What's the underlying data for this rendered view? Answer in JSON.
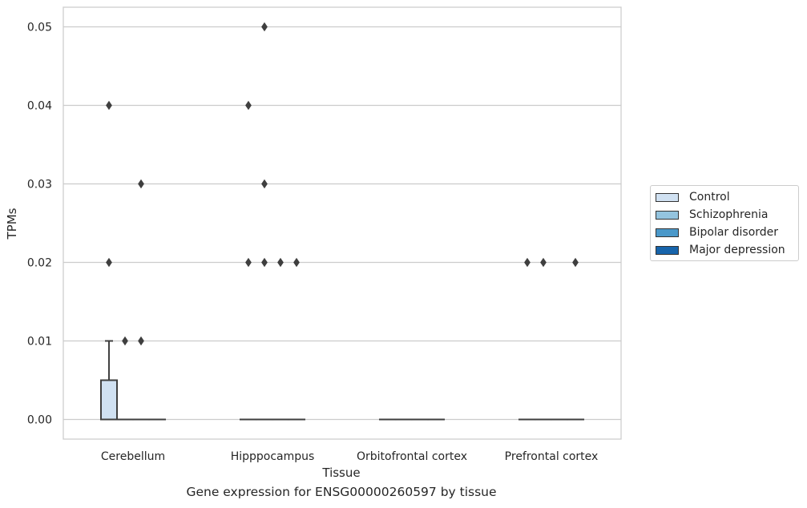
{
  "chart_data": {
    "type": "box",
    "xlabel": "Tissue",
    "ylabel": "TPMs",
    "caption": "Gene expression for ENSG00000260597 by tissue",
    "ylim": [
      -0.0025,
      0.0525
    ],
    "yticks": [
      "0.00",
      "0.01",
      "0.02",
      "0.03",
      "0.04",
      "0.05"
    ],
    "ytick_values": [
      0,
      0.01,
      0.02,
      0.03,
      0.04,
      0.05
    ],
    "grid": true,
    "legend_placement": "right",
    "categories": [
      "Cerebellum",
      "Hipppocampus",
      "Orbitofrontal cortex",
      "Prefrontal cortex"
    ],
    "series": [
      {
        "name": "Control",
        "color": "#d0e1f2",
        "boxes": [
          {
            "q1": 0,
            "median": 0,
            "q3": 0.005,
            "whisker_low": 0,
            "whisker_high": 0.01,
            "outliers": [
              0.02,
              0.04
            ]
          },
          {
            "q1": 0,
            "median": 0,
            "q3": 0,
            "whisker_low": 0,
            "whisker_high": 0,
            "outliers": [
              0.02,
              0.04
            ]
          },
          {
            "q1": 0,
            "median": 0,
            "q3": 0,
            "whisker_low": 0,
            "whisker_high": 0,
            "outliers": []
          },
          {
            "q1": 0,
            "median": 0,
            "q3": 0,
            "whisker_low": 0,
            "whisker_high": 0,
            "outliers": [
              0.02
            ]
          }
        ]
      },
      {
        "name": "Schizophrenia",
        "color": "#94c4df",
        "boxes": [
          {
            "q1": 0,
            "median": 0,
            "q3": 0,
            "whisker_low": 0,
            "whisker_high": 0,
            "outliers": [
              0.01
            ]
          },
          {
            "q1": 0,
            "median": 0,
            "q3": 0,
            "whisker_low": 0,
            "whisker_high": 0,
            "outliers": [
              0.02,
              0.03,
              0.05
            ]
          },
          {
            "q1": 0,
            "median": 0,
            "q3": 0,
            "whisker_low": 0,
            "whisker_high": 0,
            "outliers": []
          },
          {
            "q1": 0,
            "median": 0,
            "q3": 0,
            "whisker_low": 0,
            "whisker_high": 0,
            "outliers": [
              0.02
            ]
          }
        ]
      },
      {
        "name": "Bipolar disorder",
        "color": "#4a98c9",
        "boxes": [
          {
            "q1": 0,
            "median": 0,
            "q3": 0,
            "whisker_low": 0,
            "whisker_high": 0,
            "outliers": [
              0.01,
              0.03
            ]
          },
          {
            "q1": 0,
            "median": 0,
            "q3": 0,
            "whisker_low": 0,
            "whisker_high": 0,
            "outliers": [
              0.02
            ]
          },
          {
            "q1": 0,
            "median": 0,
            "q3": 0,
            "whisker_low": 0,
            "whisker_high": 0,
            "outliers": []
          },
          {
            "q1": 0,
            "median": 0,
            "q3": 0,
            "whisker_low": 0,
            "whisker_high": 0,
            "outliers": []
          }
        ]
      },
      {
        "name": "Major depression",
        "color": "#1764ab",
        "boxes": [
          {
            "q1": 0,
            "median": 0,
            "q3": 0,
            "whisker_low": 0,
            "whisker_high": 0,
            "outliers": []
          },
          {
            "q1": 0,
            "median": 0,
            "q3": 0,
            "whisker_low": 0,
            "whisker_high": 0,
            "outliers": [
              0.02
            ]
          },
          {
            "q1": 0,
            "median": 0,
            "q3": 0,
            "whisker_low": 0,
            "whisker_high": 0,
            "outliers": []
          },
          {
            "q1": 0,
            "median": 0,
            "q3": 0,
            "whisker_low": 0,
            "whisker_high": 0,
            "outliers": [
              0.02
            ]
          }
        ]
      }
    ]
  },
  "legend": {
    "items": [
      {
        "label": "Control",
        "color": "#d0e1f2"
      },
      {
        "label": "Schizophrenia",
        "color": "#94c4df"
      },
      {
        "label": "Bipolar disorder",
        "color": "#4a98c9"
      },
      {
        "label": "Major depression",
        "color": "#1764ab"
      }
    ]
  },
  "colors": {
    "grid": "#cccccc",
    "spine": "#cccccc",
    "box_edge": "#3f3f3f",
    "text": "#262626"
  }
}
